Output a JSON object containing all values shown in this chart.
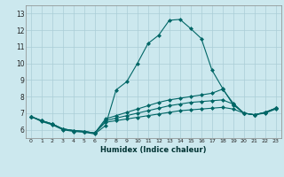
{
  "title": "",
  "xlabel": "Humidex (Indice chaleur)",
  "bg_color": "#cce8ee",
  "line_color": "#006666",
  "grid_color": "#aacdd6",
  "xlim": [
    -0.5,
    23.5
  ],
  "ylim": [
    5.5,
    13.5
  ],
  "yticks": [
    6,
    7,
    8,
    9,
    10,
    11,
    12,
    13
  ],
  "xticks": [
    0,
    1,
    2,
    3,
    4,
    5,
    6,
    7,
    8,
    9,
    10,
    11,
    12,
    13,
    14,
    15,
    16,
    17,
    18,
    19,
    20,
    21,
    22,
    23
  ],
  "line1_x": [
    0,
    1,
    2,
    3,
    4,
    5,
    6,
    7,
    8,
    9,
    10,
    11,
    12,
    13,
    14,
    15,
    16,
    17,
    18,
    19,
    20,
    21,
    22,
    23
  ],
  "line1_y": [
    6.8,
    6.5,
    6.3,
    6.0,
    5.9,
    5.85,
    5.75,
    6.25,
    8.4,
    8.9,
    10.0,
    11.2,
    11.7,
    12.6,
    12.65,
    12.1,
    11.5,
    9.6,
    8.5,
    7.5,
    7.0,
    6.9,
    7.0,
    7.25
  ],
  "line2_x": [
    0,
    1,
    2,
    3,
    4,
    5,
    6,
    7,
    8,
    9,
    10,
    11,
    12,
    13,
    14,
    15,
    16,
    17,
    18,
    19,
    20,
    21,
    22,
    23
  ],
  "line2_y": [
    6.8,
    6.55,
    6.35,
    6.05,
    5.95,
    5.9,
    5.8,
    6.65,
    6.85,
    7.05,
    7.25,
    7.45,
    7.65,
    7.8,
    7.9,
    8.0,
    8.1,
    8.2,
    8.45,
    7.6,
    7.0,
    6.9,
    7.05,
    7.3
  ],
  "line3_x": [
    0,
    1,
    2,
    3,
    4,
    5,
    6,
    7,
    8,
    9,
    10,
    11,
    12,
    13,
    14,
    15,
    16,
    17,
    18,
    19,
    20,
    21,
    22,
    23
  ],
  "line3_y": [
    6.8,
    6.55,
    6.35,
    6.05,
    5.95,
    5.9,
    5.8,
    6.55,
    6.7,
    6.85,
    7.0,
    7.15,
    7.3,
    7.45,
    7.55,
    7.65,
    7.7,
    7.75,
    7.8,
    7.55,
    7.0,
    6.9,
    7.05,
    7.3
  ],
  "line4_x": [
    0,
    1,
    2,
    3,
    4,
    5,
    6,
    7,
    8,
    9,
    10,
    11,
    12,
    13,
    14,
    15,
    16,
    17,
    18,
    19,
    20,
    21,
    22,
    23
  ],
  "line4_y": [
    6.8,
    6.55,
    6.35,
    6.05,
    5.95,
    5.9,
    5.8,
    6.45,
    6.55,
    6.65,
    6.75,
    6.85,
    6.95,
    7.05,
    7.15,
    7.2,
    7.25,
    7.3,
    7.35,
    7.25,
    7.0,
    6.9,
    7.05,
    7.3
  ]
}
